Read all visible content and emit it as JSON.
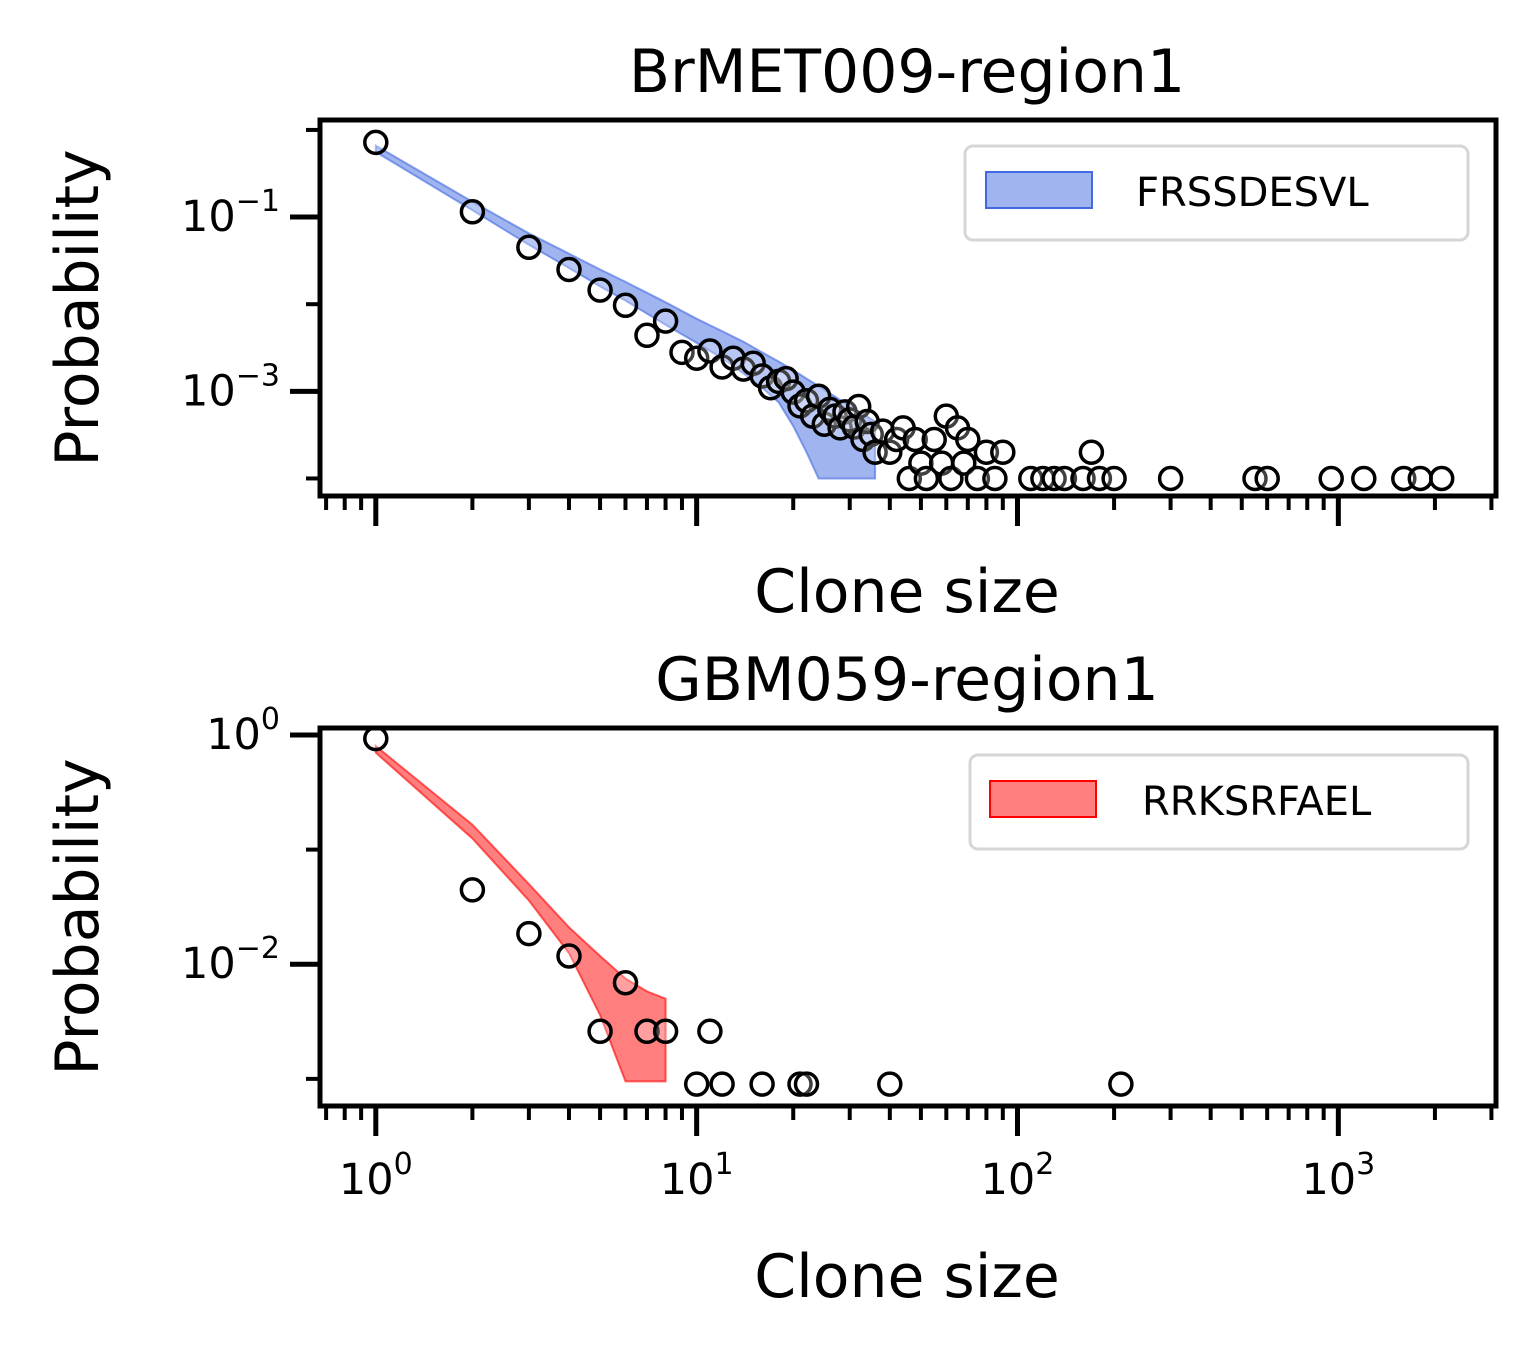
{
  "chart_data": [
    {
      "type": "scatter",
      "title": "BrMET009-region1",
      "xlabel": "Clone size",
      "ylabel": "Probability",
      "x_scale": "log",
      "y_scale": "log",
      "xlim": [
        0.67,
        3100
      ],
      "ylim": [
        6.29e-05,
        1.3
      ],
      "show_xtick_labels": false,
      "x_ticks": [
        {
          "value": 1,
          "base": "10",
          "exp": "0"
        },
        {
          "value": 10,
          "base": "10",
          "exp": "1"
        },
        {
          "value": 100,
          "base": "10",
          "exp": "2"
        },
        {
          "value": 1000,
          "base": "10",
          "exp": "3"
        }
      ],
      "y_ticks": [
        {
          "value": 0.1,
          "base": "10",
          "exp": "−1"
        },
        {
          "value": 0.001,
          "base": "10",
          "exp": "−3"
        }
      ],
      "legend": {
        "label": "FRSSDESVL",
        "position": "upper right"
      },
      "band": {
        "color": "#4169E1",
        "fill_opacity": 0.5,
        "x": [
          1,
          2,
          3,
          4,
          5,
          6,
          7,
          8,
          10,
          12,
          14,
          16,
          18,
          20,
          22,
          24,
          26,
          28,
          30,
          33,
          36
        ],
        "upper": [
          0.66,
          0.15,
          0.065,
          0.038,
          0.025,
          0.018,
          0.0135,
          0.0105,
          0.0068,
          0.0049,
          0.0037,
          0.0028,
          0.0022,
          0.00175,
          0.0014,
          0.00115,
          0.00095,
          0.0008,
          0.00068,
          0.00055,
          0.00045
        ],
        "lower": [
          0.56,
          0.12,
          0.048,
          0.026,
          0.016,
          0.011,
          0.0078,
          0.0058,
          0.0036,
          0.0024,
          0.0016,
          0.0011,
          0.00075,
          0.0004,
          0.0002,
          0.0001,
          0.0001,
          0.0001,
          0.0001,
          0.0001,
          0.0001
        ]
      },
      "points": {
        "x": [
          1,
          2,
          3,
          4,
          5,
          6,
          7,
          8,
          9,
          10,
          11,
          12,
          13,
          14,
          15,
          16,
          17,
          18,
          19,
          20,
          21,
          22,
          23,
          24,
          25,
          26,
          27,
          28,
          29,
          30,
          31,
          32,
          33,
          34,
          35,
          36,
          38,
          40,
          42,
          44,
          46,
          48,
          50,
          52,
          55,
          58,
          60,
          62,
          65,
          68,
          70,
          75,
          80,
          85,
          90,
          110,
          120,
          130,
          140,
          160,
          170,
          180,
          200,
          300,
          550,
          600,
          950,
          1200,
          1600,
          1800,
          2100
        ],
        "y": [
          0.72,
          0.115,
          0.045,
          0.025,
          0.0145,
          0.0097,
          0.0044,
          0.0064,
          0.0028,
          0.0024,
          0.0029,
          0.0019,
          0.0024,
          0.0018,
          0.0021,
          0.0015,
          0.0011,
          0.0013,
          0.0014,
          0.00098,
          0.00068,
          0.00078,
          0.00052,
          0.00088,
          0.00042,
          0.00062,
          0.00052,
          0.00038,
          0.00058,
          0.00047,
          0.00039,
          0.00067,
          0.00028,
          0.00045,
          0.00032,
          0.0002,
          0.00035,
          0.0002,
          0.00028,
          0.00038,
          0.0001,
          0.00028,
          0.00015,
          0.0001,
          0.00028,
          0.00015,
          0.00052,
          0.0001,
          0.00038,
          0.00015,
          0.00028,
          0.0001,
          0.0002,
          0.0001,
          0.0002,
          0.0001,
          0.0001,
          0.0001,
          0.0001,
          0.0001,
          0.0002,
          0.0001,
          0.0001,
          0.0001,
          0.0001,
          0.0001,
          0.0001,
          0.0001,
          0.0001,
          0.0001,
          0.0001
        ]
      }
    },
    {
      "type": "scatter",
      "title": "GBM059-region1",
      "xlabel": "Clone size",
      "ylabel": "Probability",
      "x_scale": "log",
      "y_scale": "log",
      "xlim": [
        0.67,
        3100
      ],
      "ylim": [
        0.00058,
        1.15
      ],
      "show_xtick_labels": true,
      "x_ticks": [
        {
          "value": 1,
          "base": "10",
          "exp": "0"
        },
        {
          "value": 10,
          "base": "10",
          "exp": "1"
        },
        {
          "value": 100,
          "base": "10",
          "exp": "2"
        },
        {
          "value": 1000,
          "base": "10",
          "exp": "3"
        }
      ],
      "y_ticks": [
        {
          "value": 1,
          "base": "10",
          "exp": "0"
        },
        {
          "value": 0.01,
          "base": "10",
          "exp": "−2"
        }
      ],
      "legend": {
        "label": "RRKSRFAEL",
        "position": "upper right"
      },
      "band": {
        "color": "#FF0000",
        "fill_opacity": 0.5,
        "x": [
          1,
          2,
          3,
          4,
          5,
          6,
          7,
          8
        ],
        "upper": [
          0.8,
          0.165,
          0.05,
          0.021,
          0.0118,
          0.0075,
          0.0058,
          0.005
        ],
        "lower": [
          0.7,
          0.125,
          0.036,
          0.0125,
          0.0036,
          0.00095,
          0.00095,
          0.00095
        ]
      },
      "points": {
        "x": [
          1,
          2,
          3,
          4,
          5,
          6,
          7,
          8,
          10,
          11,
          12,
          16,
          21,
          22,
          40,
          210
        ],
        "y": [
          0.93,
          0.0445,
          0.0185,
          0.0118,
          0.0026,
          0.0069,
          0.0026,
          0.0026,
          0.0009,
          0.0026,
          0.0009,
          0.0009,
          0.0009,
          0.0009,
          0.0009,
          0.0009
        ]
      }
    }
  ]
}
